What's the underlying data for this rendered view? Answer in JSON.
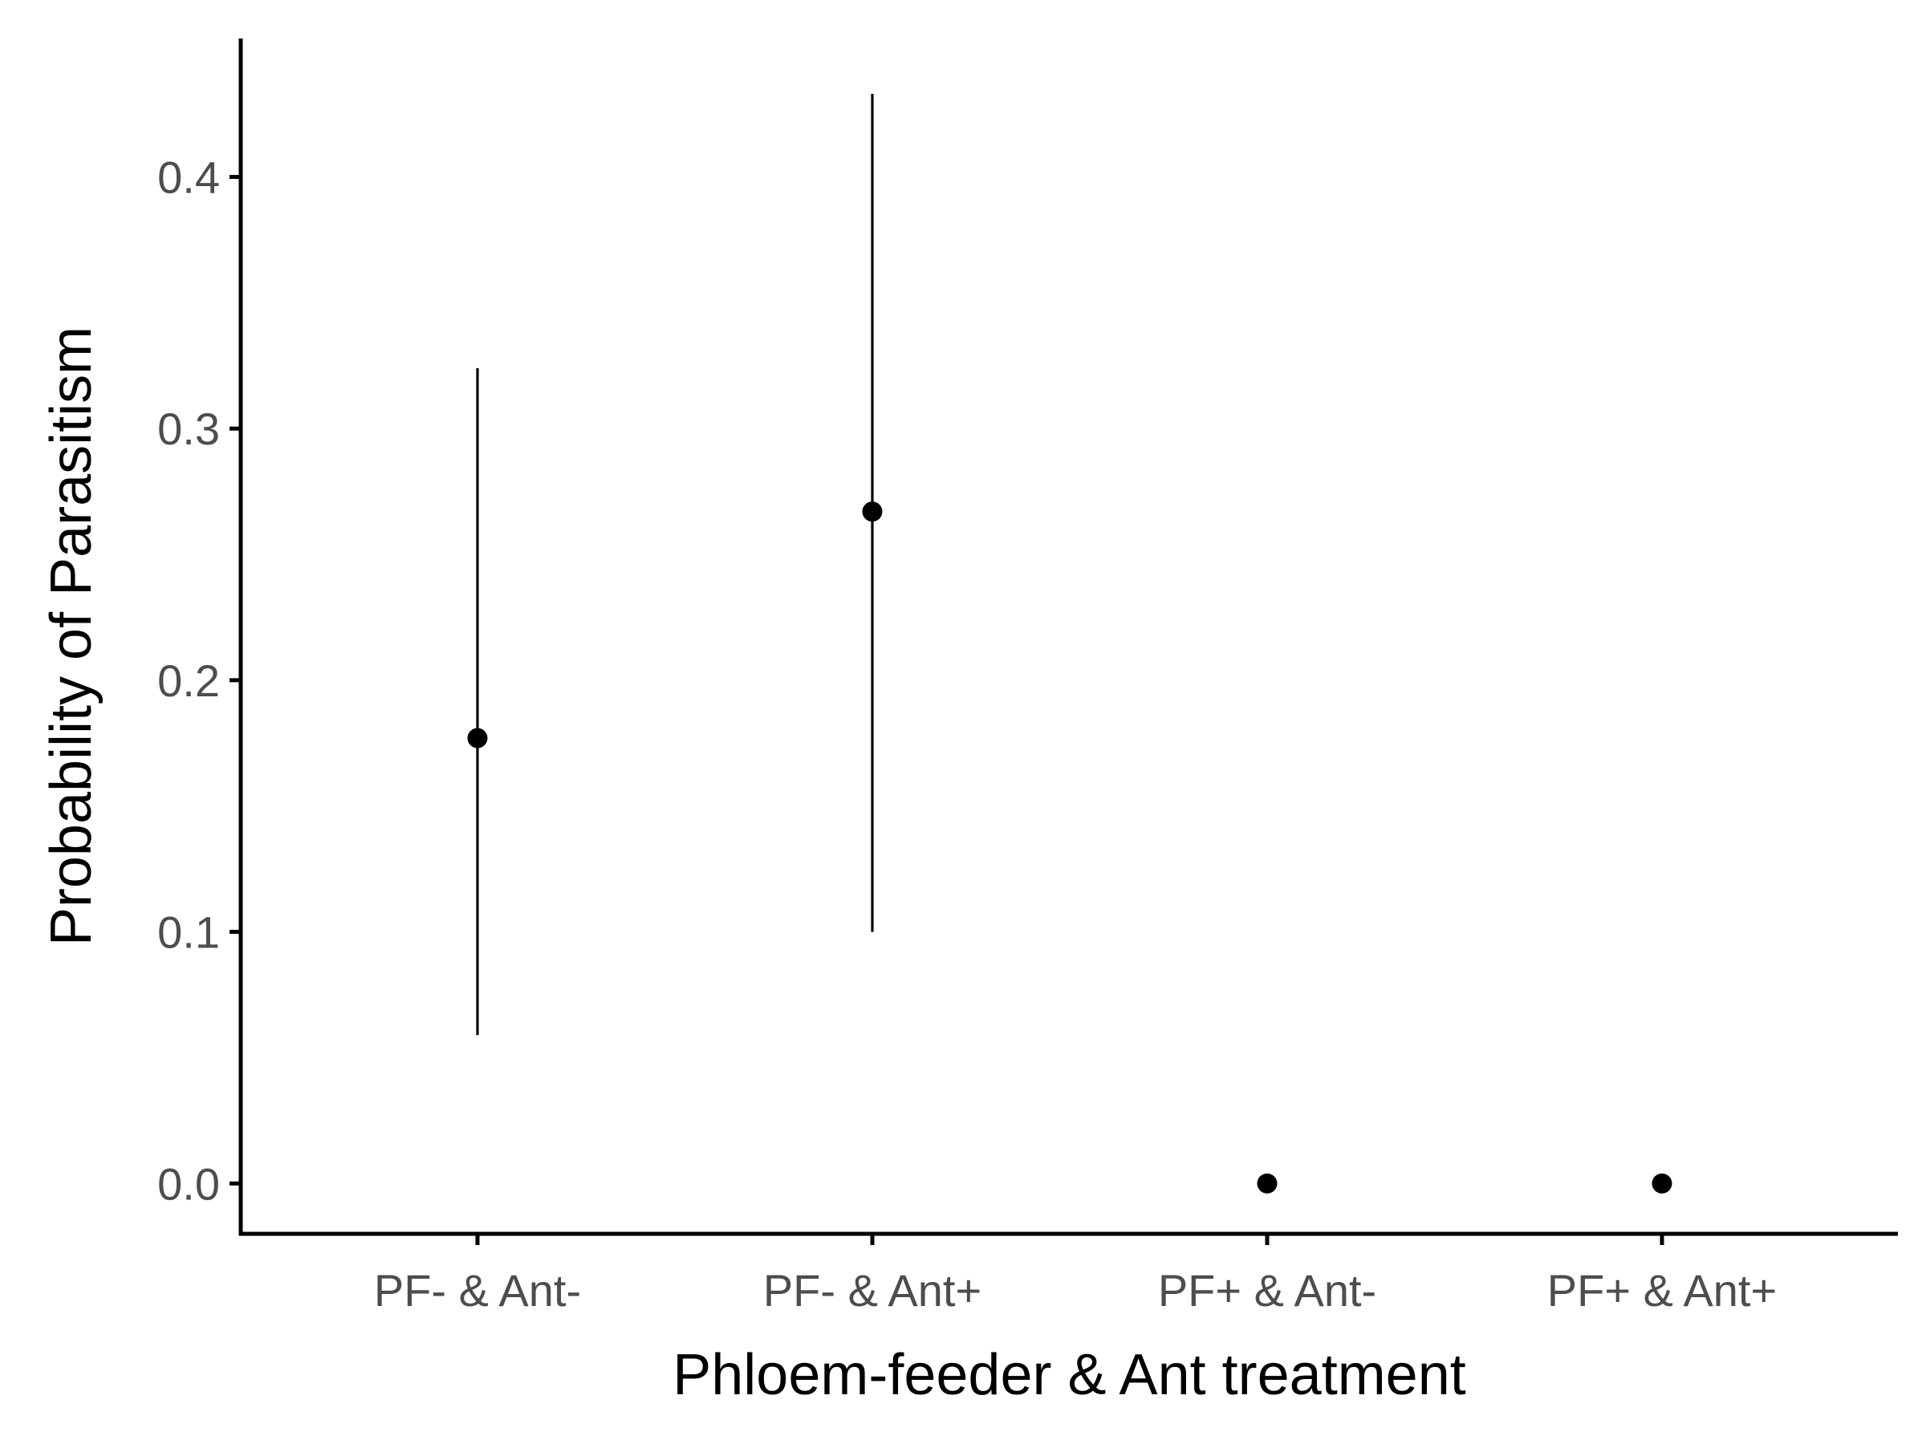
{
  "chart_data": {
    "type": "scatter",
    "subtype": "point-with-errorbars",
    "title": "",
    "xlabel": "Phloem-feeder & Ant treatment",
    "ylabel": "Probability of Parasitism",
    "categories": [
      "PF- & Ant-",
      "PF- & Ant+",
      "PF+ & Ant-",
      "PF+ & Ant+"
    ],
    "values": [
      0.177,
      0.267,
      0.0,
      0.0
    ],
    "lower": [
      0.059,
      0.1,
      null,
      null
    ],
    "upper": [
      0.324,
      0.433,
      null,
      null
    ],
    "ylim": [
      -0.02,
      0.455
    ],
    "yticks": [
      0.0,
      0.1,
      0.2,
      0.3,
      0.4
    ],
    "ytick_labels": [
      "0.0",
      "0.1",
      "0.2",
      "0.3",
      "0.4"
    ],
    "grid": false,
    "legend": "none",
    "colors": {
      "point": "#000000",
      "axis": "#000000",
      "tick_label": "#4d4d4d"
    }
  }
}
